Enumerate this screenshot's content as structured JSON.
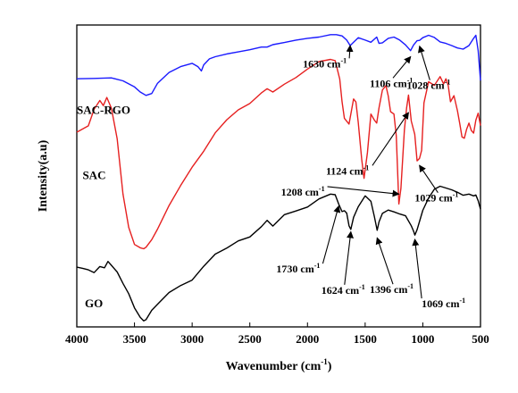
{
  "chart_data": {
    "type": "line",
    "xlabel": "Wavenumber (cm",
    "xlabel_sup": "-1",
    "xlabel_end": ")",
    "ylabel": "Intensity(a.u)",
    "xlim": [
      4000,
      500
    ],
    "ylim": [
      0,
      100
    ],
    "x_reversed": true,
    "y_ticks_shown": false,
    "grid": false,
    "xticks": [
      4000,
      3500,
      3000,
      2500,
      2000,
      1500,
      1000,
      500
    ],
    "series": [
      {
        "name": "SAC-RGO",
        "color": "#1a1aff",
        "x": [
          4000,
          3850,
          3700,
          3600,
          3500,
          3450,
          3400,
          3350,
          3300,
          3200,
          3100,
          3000,
          2950,
          2920,
          2900,
          2850,
          2800,
          2700,
          2600,
          2500,
          2400,
          2350,
          2300,
          2200,
          2100,
          2000,
          1900,
          1800,
          1750,
          1700,
          1660,
          1630,
          1600,
          1560,
          1500,
          1450,
          1400,
          1380,
          1350,
          1300,
          1250,
          1200,
          1150,
          1106,
          1080,
          1050,
          1028,
          1000,
          950,
          900,
          850,
          800,
          750,
          700,
          650,
          600,
          560,
          540,
          520,
          510,
          500
        ],
        "values": [
          82.2,
          82.3,
          82.5,
          81.5,
          79.5,
          77.8,
          76.7,
          77.3,
          80.7,
          84.3,
          86.2,
          87.3,
          86.2,
          84.8,
          86.8,
          88.8,
          89.5,
          90.4,
          91.1,
          91.8,
          92.7,
          92.7,
          93.5,
          94.2,
          95.0,
          95.6,
          96.0,
          96.8,
          96.8,
          96.4,
          95.0,
          93.2,
          94.3,
          95.8,
          95.0,
          94.3,
          96.0,
          93.9,
          94.1,
          95.6,
          96.0,
          95.0,
          93.4,
          91.5,
          93.4,
          94.8,
          94.9,
          95.8,
          96.6,
          95.9,
          94.4,
          93.9,
          93.2,
          92.4,
          92.0,
          93.2,
          95.6,
          96.6,
          91.5,
          86.6,
          81.6
        ]
      },
      {
        "name": "SAC",
        "color": "#e62020",
        "x": [
          4000,
          3900,
          3850,
          3800,
          3770,
          3740,
          3700,
          3650,
          3600,
          3550,
          3500,
          3450,
          3420,
          3400,
          3350,
          3300,
          3200,
          3100,
          3000,
          2900,
          2800,
          2700,
          2600,
          2500,
          2400,
          2350,
          2300,
          2200,
          2100,
          2000,
          1900,
          1800,
          1760,
          1720,
          1700,
          1680,
          1640,
          1600,
          1580,
          1560,
          1530,
          1510,
          1480,
          1450,
          1420,
          1400,
          1380,
          1350,
          1320,
          1300,
          1280,
          1250,
          1230,
          1208,
          1190,
          1160,
          1140,
          1124,
          1100,
          1070,
          1050,
          1029,
          1010,
          990,
          950,
          900,
          850,
          820,
          800,
          780,
          760,
          730,
          700,
          680,
          660,
          640,
          620,
          600,
          580,
          560,
          540,
          520,
          500
        ],
        "values": [
          64.5,
          66.6,
          72.1,
          75.0,
          73.3,
          76.0,
          72.5,
          62.3,
          44.0,
          33.0,
          27.3,
          26.2,
          25.9,
          26.4,
          28.9,
          32.4,
          40.2,
          46.8,
          52.9,
          58.2,
          64.3,
          68.6,
          71.9,
          74.0,
          77.5,
          78.9,
          77.8,
          80.4,
          82.6,
          85.4,
          87.9,
          88.6,
          88.2,
          82.1,
          74.6,
          69.1,
          67.2,
          75.5,
          74.5,
          67.8,
          55.5,
          49.2,
          57.7,
          70.5,
          68.5,
          67.5,
          72.6,
          78.5,
          79.9,
          76.5,
          71.3,
          70.5,
          63.3,
          40.7,
          45.9,
          65.2,
          72.6,
          76.8,
          68.2,
          63.8,
          55.0,
          55.8,
          58.5,
          74.2,
          81.2,
          80.0,
          82.9,
          80.5,
          82.2,
          80.1,
          74.6,
          76.6,
          71.6,
          67.3,
          62.9,
          62.5,
          65.5,
          67.5,
          65.1,
          64.2,
          68.5,
          70.8,
          66.7
        ]
      },
      {
        "name": "GO",
        "color": "#000000",
        "x": [
          4000,
          3950,
          3900,
          3850,
          3800,
          3760,
          3730,
          3700,
          3650,
          3600,
          3550,
          3500,
          3450,
          3420,
          3400,
          3350,
          3300,
          3200,
          3100,
          3000,
          2900,
          2800,
          2700,
          2600,
          2500,
          2400,
          2350,
          2300,
          2200,
          2100,
          2000,
          1900,
          1800,
          1760,
          1730,
          1700,
          1680,
          1660,
          1640,
          1624,
          1600,
          1560,
          1500,
          1450,
          1420,
          1396,
          1380,
          1350,
          1300,
          1250,
          1200,
          1150,
          1100,
          1080,
          1069,
          1050,
          1000,
          950,
          900,
          850,
          800,
          750,
          700,
          650,
          600,
          560,
          540,
          520,
          500
        ],
        "values": [
          19.8,
          19.4,
          18.9,
          18.0,
          20.0,
          19.6,
          21.7,
          20.4,
          18.2,
          14.4,
          11.0,
          6.3,
          3.2,
          2.0,
          2.4,
          5.5,
          7.5,
          11.4,
          13.7,
          15.5,
          20.1,
          24.1,
          26.1,
          28.5,
          29.8,
          33.2,
          35.3,
          33.4,
          37.2,
          38.4,
          39.7,
          42.4,
          44.0,
          43.8,
          40.7,
          38.2,
          38.5,
          37.7,
          33.5,
          32.3,
          36.3,
          39.8,
          43.4,
          41.6,
          36.5,
          32.0,
          34.8,
          37.6,
          38.7,
          38.1,
          37.4,
          36.8,
          33.5,
          31.7,
          30.4,
          32.2,
          38.6,
          42.7,
          45.6,
          46.6,
          46.0,
          45.4,
          44.6,
          43.6,
          44.0,
          43.4,
          43.7,
          41.8,
          39.0
        ]
      }
    ],
    "series_labels": [
      {
        "text": "SAC-RGO",
        "x": 4000,
        "y": 70.5
      },
      {
        "text": "SAC",
        "x": 3950,
        "y": 49.0
      },
      {
        "text": "GO",
        "x": 3930,
        "y": 6.5
      }
    ],
    "annotations": [
      {
        "text": "1630 cm",
        "sup": "-1",
        "label_x": 2040,
        "label_y": 86.0,
        "arrow_to": [
          1630,
          93.2
        ]
      },
      {
        "text": "1106 cm",
        "sup": "-1",
        "label_x": 1460,
        "label_y": 79.5,
        "arrow_to": [
          1106,
          89.5
        ]
      },
      {
        "text": "1028 cm",
        "sup": "-1",
        "label_x": 1140,
        "label_y": 78.8,
        "arrow_to": [
          1028,
          93.0
        ]
      },
      {
        "text": "1124 cm",
        "sup": "-1",
        "label_x": 1840,
        "label_y": 50.5,
        "arrow_to": [
          1124,
          71.0
        ]
      },
      {
        "text": "1208 cm",
        "sup": "-1",
        "label_x": 2230,
        "label_y": 43.5,
        "arrow_to": [
          1208,
          44.0
        ]
      },
      {
        "text": "1029 cm",
        "sup": "-1",
        "label_x": 1070,
        "label_y": 41.5,
        "arrow_to": [
          1029,
          53.5
        ]
      },
      {
        "text": "1730 cm",
        "sup": "-1",
        "label_x": 2270,
        "label_y": 18.0,
        "arrow_to": [
          1730,
          40.0
        ]
      },
      {
        "text": "1624 cm",
        "sup": "-1",
        "label_x": 1880,
        "label_y": 11.0,
        "arrow_to": [
          1624,
          31.5
        ]
      },
      {
        "text": "1396 cm",
        "sup": "-1",
        "label_x": 1460,
        "label_y": 11.2,
        "arrow_to": [
          1396,
          29.5
        ]
      },
      {
        "text": "1069 cm",
        "sup": "-1",
        "label_x": 1010,
        "label_y": 6.5,
        "arrow_to": [
          1069,
          29.0
        ]
      }
    ]
  }
}
